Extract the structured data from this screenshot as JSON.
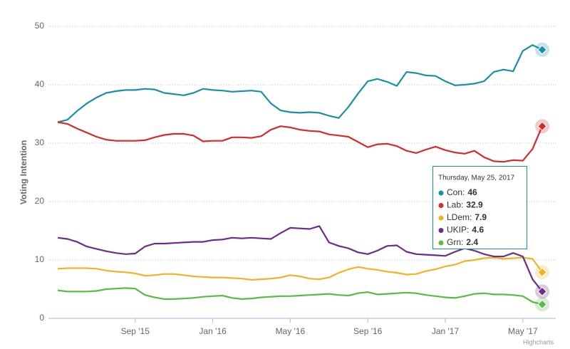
{
  "chart_data": {
    "type": "line",
    "y_axis_title": "Voting Intention",
    "credits": "Highcharts",
    "categories": [
      null,
      null,
      null,
      null,
      null,
      null,
      null,
      null,
      "Sep '15",
      null,
      null,
      null,
      null,
      null,
      null,
      null,
      "Jan '16",
      null,
      null,
      null,
      null,
      null,
      null,
      null,
      "May '16",
      null,
      null,
      null,
      null,
      null,
      null,
      null,
      "Sep '16",
      null,
      null,
      null,
      null,
      null,
      null,
      null,
      "Jan '17",
      null,
      null,
      null,
      null,
      null,
      null,
      null,
      "May '17",
      null,
      null
    ],
    "ylim": [
      0,
      50
    ],
    "yticks": [
      0,
      10,
      20,
      30,
      40,
      50
    ],
    "grid": true,
    "series": [
      {
        "name": "Con",
        "color": "#1a8fa8",
        "values": [
          33.6,
          34,
          35.5,
          36.8,
          37.8,
          38.6,
          38.9,
          39.1,
          39.1,
          39.3,
          39.2,
          38.6,
          38.4,
          38.2,
          38.6,
          39.3,
          39.1,
          39.0,
          38.8,
          38.9,
          39.0,
          38.8,
          36.8,
          35.6,
          35.3,
          35.2,
          35.3,
          35.2,
          34.7,
          34.3,
          36.2,
          38.5,
          40.6,
          41.0,
          40.5,
          39.8,
          42.2,
          42.0,
          41.6,
          41.5,
          40.6,
          39.9,
          40.0,
          40.2,
          40.6,
          42.2,
          42.6,
          42.3,
          45.8,
          46.8,
          46
        ]
      },
      {
        "name": "Lab",
        "color": "#d42b2b",
        "values": [
          33.6,
          33.3,
          32.5,
          31.8,
          31.1,
          30.6,
          30.4,
          30.4,
          30.4,
          30.5,
          31.0,
          31.4,
          31.6,
          31.6,
          31.3,
          30.3,
          30.4,
          30.4,
          31.0,
          31.0,
          30.9,
          31.2,
          32.3,
          32.9,
          32.7,
          32.3,
          32.1,
          32.0,
          31.5,
          31.3,
          31.1,
          30.2,
          29.3,
          29.8,
          29.9,
          29.5,
          28.7,
          28.3,
          28.9,
          29.4,
          28.8,
          28.4,
          28.2,
          28.7,
          27.6,
          26.9,
          26.8,
          27.1,
          27.0,
          29.0,
          32.9
        ]
      },
      {
        "name": "LDem",
        "color": "#f0b323",
        "values": [
          8.5,
          8.6,
          8.6,
          8.6,
          8.5,
          8.2,
          8.0,
          7.9,
          7.7,
          7.3,
          7.4,
          7.6,
          7.6,
          7.4,
          7.2,
          7.1,
          7.0,
          7.0,
          6.9,
          6.8,
          6.6,
          6.7,
          6.8,
          7.0,
          7.4,
          7.2,
          6.8,
          6.7,
          7.0,
          7.8,
          8.4,
          8.8,
          8.5,
          8.3,
          8.0,
          7.8,
          7.5,
          7.6,
          8.1,
          8.4,
          8.9,
          9.2,
          9.8,
          10.0,
          10.3,
          10.4,
          10.2,
          10.3,
          10.4,
          10.2,
          7.9
        ]
      },
      {
        "name": "UKIP",
        "color": "#6c2c8c",
        "values": [
          13.8,
          13.6,
          13.1,
          12.3,
          11.9,
          11.5,
          11.2,
          11.0,
          11.1,
          12.3,
          12.8,
          12.8,
          12.9,
          13.0,
          13.1,
          13.1,
          13.4,
          13.5,
          13.8,
          13.7,
          13.8,
          13.7,
          13.6,
          14.6,
          15.5,
          15.4,
          15.3,
          15.8,
          13.0,
          12.4,
          12.0,
          11.3,
          11.0,
          11.6,
          12.4,
          12.5,
          11.4,
          11.0,
          10.9,
          10.8,
          10.7,
          11.4,
          12.0,
          11.6,
          11.0,
          10.6,
          10.6,
          11.2,
          10.6,
          6.7,
          4.6
        ]
      },
      {
        "name": "Grn",
        "color": "#5bb946",
        "values": [
          4.8,
          4.6,
          4.6,
          4.6,
          4.7,
          5.0,
          5.1,
          5.2,
          5.1,
          4.0,
          3.6,
          3.3,
          3.3,
          3.4,
          3.5,
          3.7,
          3.8,
          3.9,
          3.5,
          3.3,
          3.4,
          3.6,
          3.7,
          3.8,
          3.8,
          3.9,
          4.0,
          4.1,
          4.2,
          4.0,
          3.9,
          4.3,
          4.5,
          4.1,
          4.2,
          4.3,
          4.4,
          4.3,
          4.0,
          3.8,
          3.6,
          3.5,
          3.8,
          4.2,
          4.3,
          4.1,
          4.1,
          4.0,
          3.8,
          2.8,
          2.4
        ]
      }
    ],
    "tooltip": {
      "title": "Thursday, May 25, 2017",
      "labels": [
        "Con:",
        "Lab:",
        "LDem:",
        "UKIP:",
        "Grn:"
      ],
      "index": 50
    }
  }
}
